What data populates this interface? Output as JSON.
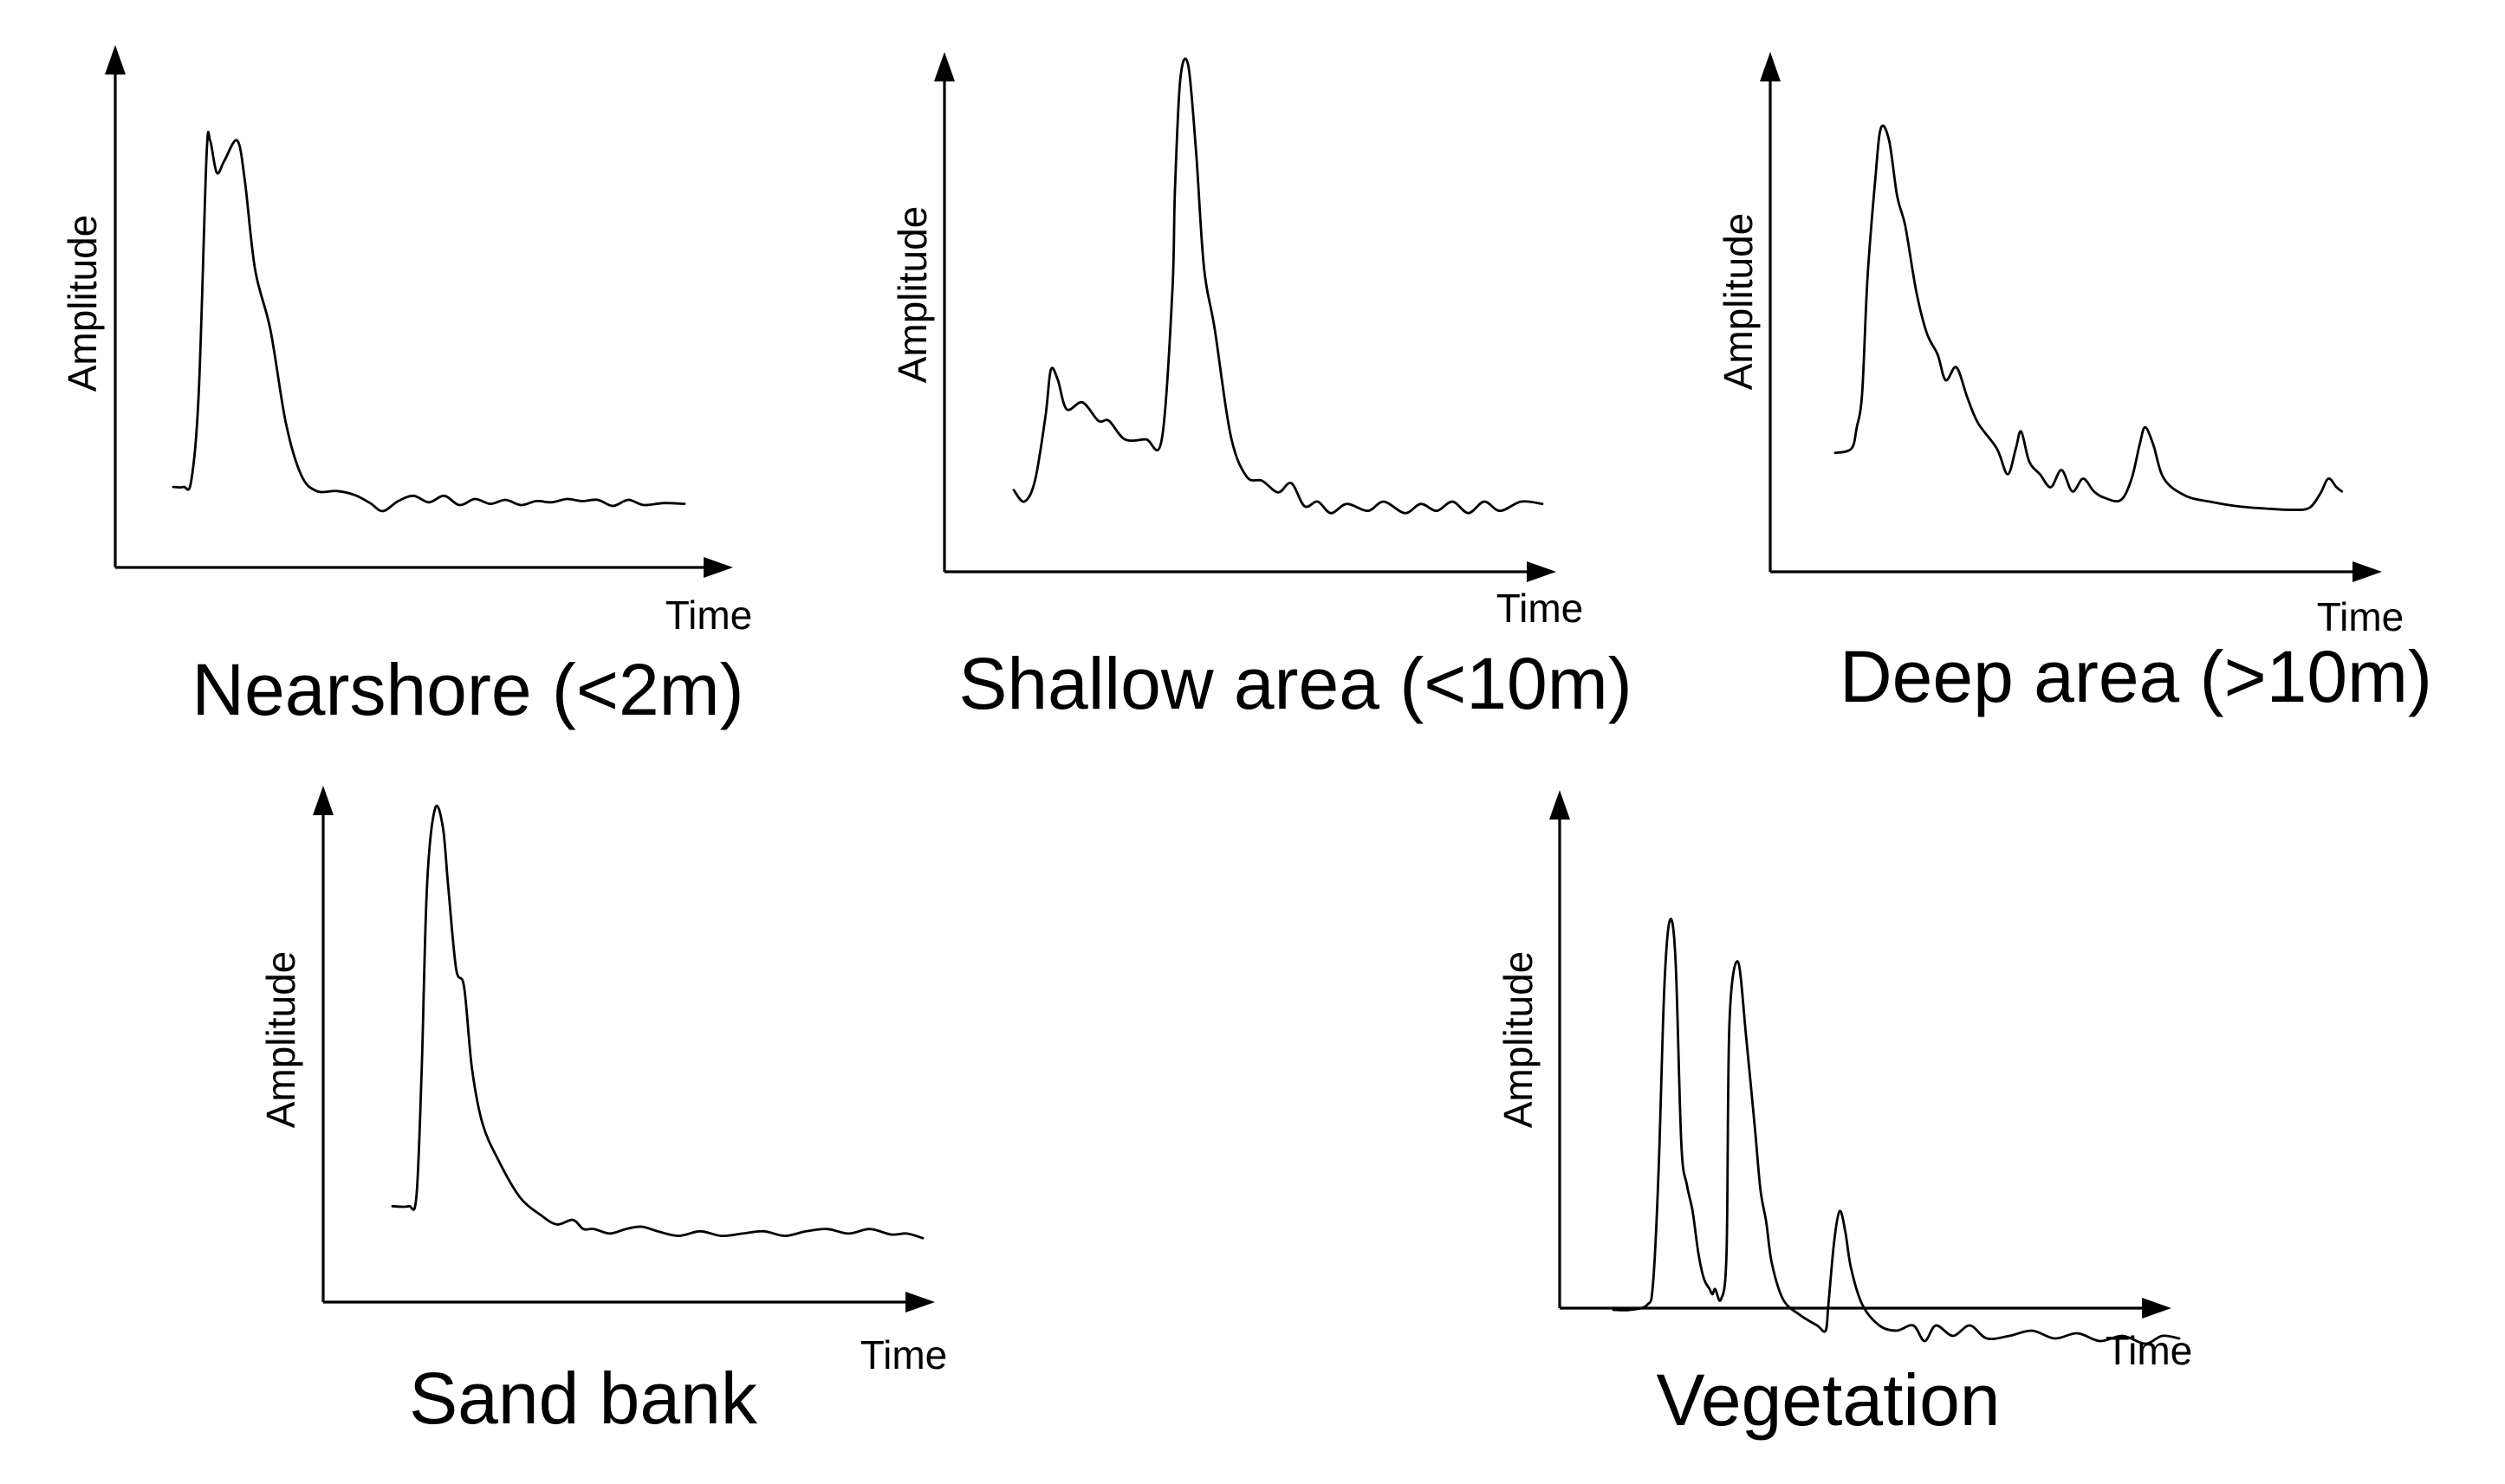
{
  "figure": {
    "panels": [
      {
        "id": "nearshore",
        "title": "Nearshore (<2m)",
        "y_axis_label": "Amplitude",
        "x_axis_label": "Time",
        "waveform": [
          [
            0,
            0.06
          ],
          [
            0.02,
            0.06
          ],
          [
            0.035,
            0.075
          ],
          [
            0.05,
            0.3
          ],
          [
            0.065,
            0.88
          ],
          [
            0.072,
            0.92
          ],
          [
            0.085,
            0.84
          ],
          [
            0.1,
            0.87
          ],
          [
            0.125,
            0.92
          ],
          [
            0.14,
            0.82
          ],
          [
            0.16,
            0.6
          ],
          [
            0.19,
            0.45
          ],
          [
            0.22,
            0.22
          ],
          [
            0.25,
            0.09
          ],
          [
            0.28,
            0.05
          ],
          [
            0.32,
            0.05
          ],
          [
            0.355,
            0.04
          ],
          [
            0.385,
            0.02
          ],
          [
            0.41,
            0.0
          ],
          [
            0.44,
            0.025
          ],
          [
            0.47,
            0.038
          ],
          [
            0.5,
            0.022
          ],
          [
            0.53,
            0.038
          ],
          [
            0.56,
            0.015
          ],
          [
            0.59,
            0.03
          ],
          [
            0.62,
            0.018
          ],
          [
            0.65,
            0.028
          ],
          [
            0.68,
            0.015
          ],
          [
            0.71,
            0.025
          ],
          [
            0.74,
            0.022
          ],
          [
            0.77,
            0.03
          ],
          [
            0.8,
            0.025
          ],
          [
            0.83,
            0.028
          ],
          [
            0.86,
            0.013
          ],
          [
            0.89,
            0.028
          ],
          [
            0.92,
            0.015
          ],
          [
            0.96,
            0.02
          ],
          [
            1.0,
            0.018
          ]
        ]
      },
      {
        "id": "shallow-area",
        "title": "Shallow area (<10m)",
        "y_axis_label": "Amplitude",
        "x_axis_label": "Time",
        "waveform": [
          [
            0,
            0.07
          ],
          [
            0.02,
            0.045
          ],
          [
            0.04,
            0.09
          ],
          [
            0.06,
            0.23
          ],
          [
            0.07,
            0.33
          ],
          [
            0.083,
            0.31
          ],
          [
            0.1,
            0.245
          ],
          [
            0.13,
            0.26
          ],
          [
            0.16,
            0.22
          ],
          [
            0.18,
            0.22
          ],
          [
            0.21,
            0.18
          ],
          [
            0.25,
            0.18
          ],
          [
            0.28,
            0.18
          ],
          [
            0.3,
            0.5
          ],
          [
            0.305,
            0.72
          ],
          [
            0.315,
            0.96
          ],
          [
            0.33,
            0.99
          ],
          [
            0.345,
            0.8
          ],
          [
            0.36,
            0.55
          ],
          [
            0.38,
            0.42
          ],
          [
            0.41,
            0.19
          ],
          [
            0.44,
            0.1
          ],
          [
            0.47,
            0.09
          ],
          [
            0.5,
            0.065
          ],
          [
            0.525,
            0.085
          ],
          [
            0.55,
            0.035
          ],
          [
            0.575,
            0.045
          ],
          [
            0.6,
            0.02
          ],
          [
            0.63,
            0.04
          ],
          [
            0.67,
            0.025
          ],
          [
            0.7,
            0.045
          ],
          [
            0.74,
            0.02
          ],
          [
            0.77,
            0.04
          ],
          [
            0.8,
            0.025
          ],
          [
            0.83,
            0.045
          ],
          [
            0.86,
            0.02
          ],
          [
            0.89,
            0.045
          ],
          [
            0.92,
            0.025
          ],
          [
            0.96,
            0.045
          ],
          [
            1.0,
            0.04
          ]
        ]
      },
      {
        "id": "deep-area",
        "title": "Deep area (>10m)",
        "y_axis_label": "Amplitude",
        "x_axis_label": "Time",
        "waveform": [
          [
            0,
            0.14
          ],
          [
            0.03,
            0.15
          ],
          [
            0.04,
            0.2
          ],
          [
            0.05,
            0.28
          ],
          [
            0.06,
            0.55
          ],
          [
            0.075,
            0.79
          ],
          [
            0.085,
            0.9
          ],
          [
            0.1,
            0.87
          ],
          [
            0.115,
            0.74
          ],
          [
            0.13,
            0.67
          ],
          [
            0.15,
            0.52
          ],
          [
            0.17,
            0.42
          ],
          [
            0.19,
            0.37
          ],
          [
            0.205,
            0.31
          ],
          [
            0.225,
            0.34
          ],
          [
            0.245,
            0.27
          ],
          [
            0.265,
            0.21
          ],
          [
            0.3,
            0.15
          ],
          [
            0.32,
            0.09
          ],
          [
            0.335,
            0.15
          ],
          [
            0.345,
            0.19
          ],
          [
            0.36,
            0.12
          ],
          [
            0.38,
            0.09
          ],
          [
            0.4,
            0.06
          ],
          [
            0.42,
            0.1
          ],
          [
            0.44,
            0.05
          ],
          [
            0.46,
            0.08
          ],
          [
            0.48,
            0.05
          ],
          [
            0.5,
            0.035
          ],
          [
            0.53,
            0.03
          ],
          [
            0.55,
            0.08
          ],
          [
            0.565,
            0.16
          ],
          [
            0.575,
            0.2
          ],
          [
            0.59,
            0.16
          ],
          [
            0.61,
            0.08
          ],
          [
            0.65,
            0.04
          ],
          [
            0.7,
            0.025
          ],
          [
            0.75,
            0.015
          ],
          [
            0.8,
            0.01
          ],
          [
            0.85,
            0.007
          ],
          [
            0.88,
            0.012
          ],
          [
            0.9,
            0.045
          ],
          [
            0.915,
            0.08
          ],
          [
            0.93,
            0.06
          ],
          [
            0.94,
            0.05
          ]
        ]
      },
      {
        "id": "sand-bank",
        "title": "Sand bank",
        "y_axis_label": "Amplitude",
        "x_axis_label": "Time",
        "waveform": [
          [
            0,
            0.1
          ],
          [
            0.03,
            0.1
          ],
          [
            0.045,
            0.12
          ],
          [
            0.055,
            0.4
          ],
          [
            0.065,
            0.8
          ],
          [
            0.08,
            0.97
          ],
          [
            0.095,
            0.93
          ],
          [
            0.105,
            0.8
          ],
          [
            0.12,
            0.62
          ],
          [
            0.135,
            0.58
          ],
          [
            0.15,
            0.4
          ],
          [
            0.17,
            0.28
          ],
          [
            0.2,
            0.2
          ],
          [
            0.24,
            0.12
          ],
          [
            0.28,
            0.08
          ],
          [
            0.31,
            0.06
          ],
          [
            0.34,
            0.07
          ],
          [
            0.36,
            0.05
          ],
          [
            0.38,
            0.05
          ],
          [
            0.41,
            0.04
          ],
          [
            0.44,
            0.05
          ],
          [
            0.47,
            0.055
          ],
          [
            0.5,
            0.045
          ],
          [
            0.54,
            0.035
          ],
          [
            0.58,
            0.045
          ],
          [
            0.62,
            0.035
          ],
          [
            0.66,
            0.04
          ],
          [
            0.7,
            0.045
          ],
          [
            0.74,
            0.035
          ],
          [
            0.78,
            0.045
          ],
          [
            0.82,
            0.05
          ],
          [
            0.86,
            0.04
          ],
          [
            0.9,
            0.05
          ],
          [
            0.94,
            0.038
          ],
          [
            0.97,
            0.04
          ],
          [
            1.0,
            0.03
          ]
        ]
      },
      {
        "id": "vegetation",
        "title": "Vegetation",
        "y_axis_label": "Amplitude",
        "x_axis_label": "Time",
        "waveform": [
          [
            0,
            0.23
          ],
          [
            0.03,
            0.23
          ],
          [
            0.06,
            0.24
          ],
          [
            0.07,
            0.28
          ],
          [
            0.08,
            0.5
          ],
          [
            0.09,
            0.85
          ],
          [
            0.1,
            0.98
          ],
          [
            0.11,
            0.9
          ],
          [
            0.12,
            0.55
          ],
          [
            0.13,
            0.47
          ],
          [
            0.14,
            0.42
          ],
          [
            0.15,
            0.34
          ],
          [
            0.16,
            0.29
          ],
          [
            0.17,
            0.27
          ],
          [
            0.175,
            0.26
          ],
          [
            0.18,
            0.27
          ],
          [
            0.19,
            0.25
          ],
          [
            0.2,
            0.34
          ],
          [
            0.205,
            0.78
          ],
          [
            0.22,
            0.9
          ],
          [
            0.235,
            0.75
          ],
          [
            0.25,
            0.58
          ],
          [
            0.26,
            0.46
          ],
          [
            0.27,
            0.4
          ],
          [
            0.28,
            0.32
          ],
          [
            0.3,
            0.25
          ],
          [
            0.33,
            0.22
          ],
          [
            0.36,
            0.2
          ],
          [
            0.375,
            0.19
          ],
          [
            0.38,
            0.24
          ],
          [
            0.39,
            0.36
          ],
          [
            0.4,
            0.42
          ],
          [
            0.41,
            0.38
          ],
          [
            0.42,
            0.31
          ],
          [
            0.44,
            0.24
          ],
          [
            0.47,
            0.2
          ],
          [
            0.5,
            0.19
          ],
          [
            0.53,
            0.2
          ],
          [
            0.55,
            0.17
          ],
          [
            0.57,
            0.2
          ],
          [
            0.6,
            0.18
          ],
          [
            0.63,
            0.2
          ],
          [
            0.66,
            0.175
          ],
          [
            0.7,
            0.18
          ],
          [
            0.74,
            0.19
          ],
          [
            0.78,
            0.175
          ],
          [
            0.82,
            0.185
          ],
          [
            0.86,
            0.17
          ],
          [
            0.9,
            0.18
          ],
          [
            0.94,
            0.165
          ],
          [
            0.97,
            0.18
          ],
          [
            1.0,
            0.175
          ]
        ]
      }
    ]
  }
}
